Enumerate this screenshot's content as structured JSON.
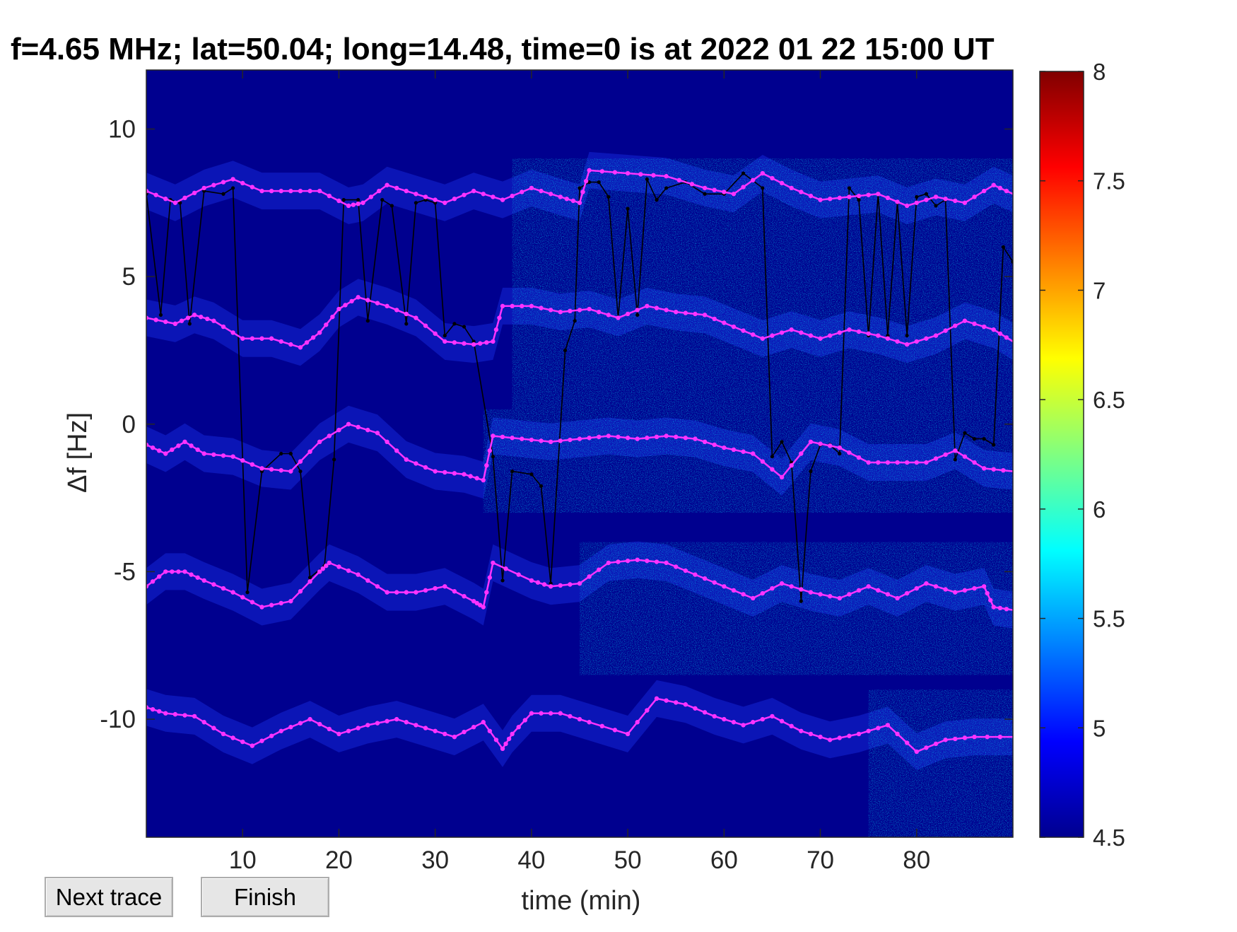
{
  "chart_data": {
    "type": "heatmap",
    "title": "f=4.65 MHz;  lat=50.04; long=14.48, time=0 is at 2022 01 22 15:00 UT",
    "xlabel": "time (min)",
    "ylabel": "Δf [Hz]",
    "xlim": [
      0,
      90
    ],
    "ylim": [
      -14,
      12
    ],
    "xticks": [
      10,
      20,
      30,
      40,
      50,
      60,
      70,
      80
    ],
    "yticks": [
      10,
      5,
      0,
      -5,
      -10
    ],
    "grid": false,
    "colorbar": {
      "range": [
        4.5,
        8
      ],
      "ticks": [
        8,
        7.5,
        7,
        6.5,
        6,
        5.5,
        5,
        4.5
      ],
      "colormap": "jet"
    },
    "colors": {
      "background": "#00008f",
      "trace_magenta": "#ff33ff",
      "trace_black": "#000000"
    },
    "bands": [
      {
        "center": 7.6,
        "spread": [
          0,
          90
        ],
        "extra": {
          "x0": 38,
          "x1": 90,
          "lo": 5.0,
          "hi": 9.0
        }
      },
      {
        "center": 3.3,
        "spread": [
          0,
          90
        ],
        "extra": {
          "x0": 38,
          "x1": 90,
          "lo": 0.5,
          "hi": 5.0
        }
      },
      {
        "center": -1.0,
        "spread": [
          0,
          90
        ],
        "extra": {
          "x0": 35,
          "x1": 90,
          "lo": -3.0,
          "hi": 0.5
        }
      },
      {
        "center": -5.6,
        "spread": [
          0,
          90
        ],
        "extra": {
          "x0": 45,
          "x1": 90,
          "lo": -8.5,
          "hi": -4.0
        }
      },
      {
        "center": -10.4,
        "spread": [
          0,
          90
        ],
        "extra": {
          "x0": 75,
          "x1": 90,
          "lo": -14.0,
          "hi": -9.0
        }
      }
    ],
    "magenta_traces": [
      {
        "x": [
          0,
          3,
          6,
          9,
          12,
          15,
          18,
          21,
          22.5,
          25,
          28,
          31,
          34,
          37,
          40,
          43,
          45,
          46,
          50,
          54,
          58,
          61,
          64,
          67,
          70,
          73,
          76,
          79,
          82,
          85,
          88,
          90
        ],
        "y": [
          7.9,
          7.5,
          8.0,
          8.3,
          7.9,
          7.9,
          7.9,
          7.4,
          7.5,
          8.1,
          7.8,
          7.5,
          7.9,
          7.6,
          8.0,
          7.7,
          7.5,
          8.6,
          8.5,
          8.4,
          8.0,
          7.8,
          8.5,
          8.0,
          7.6,
          7.7,
          7.8,
          7.4,
          7.7,
          7.5,
          8.1,
          7.8
        ]
      },
      {
        "x": [
          0,
          3,
          5,
          7,
          10,
          13,
          16,
          18,
          20,
          22,
          25,
          28,
          31,
          34,
          36,
          37,
          40,
          43,
          46,
          49,
          52,
          55,
          58,
          61,
          64,
          67,
          70,
          73,
          76,
          79,
          82,
          85,
          88,
          90
        ],
        "y": [
          3.6,
          3.4,
          3.7,
          3.5,
          2.9,
          2.9,
          2.6,
          3.1,
          3.9,
          4.3,
          4.0,
          3.6,
          2.8,
          2.7,
          2.8,
          4.0,
          4.0,
          3.8,
          3.9,
          3.6,
          4.0,
          3.8,
          3.7,
          3.3,
          2.9,
          3.2,
          2.9,
          3.2,
          3.0,
          2.7,
          3.0,
          3.5,
          3.2,
          2.8
        ]
      },
      {
        "x": [
          0,
          2,
          4,
          6,
          9,
          12,
          15,
          18,
          21,
          24,
          27,
          30,
          33,
          35,
          36,
          39,
          42,
          45,
          48,
          51,
          54,
          57,
          60,
          63,
          66,
          69,
          72,
          75,
          78,
          81,
          84,
          87,
          90
        ],
        "y": [
          -0.7,
          -1.0,
          -0.6,
          -1.0,
          -1.1,
          -1.5,
          -1.6,
          -0.6,
          0.0,
          -0.3,
          -1.2,
          -1.6,
          -1.7,
          -1.9,
          -0.4,
          -0.5,
          -0.6,
          -0.5,
          -0.4,
          -0.5,
          -0.4,
          -0.5,
          -0.8,
          -1.0,
          -1.8,
          -0.6,
          -0.8,
          -1.3,
          -1.3,
          -1.3,
          -0.9,
          -1.5,
          -1.6
        ]
      },
      {
        "x": [
          0,
          2,
          4,
          6,
          9,
          12,
          15,
          18,
          19,
          22,
          25,
          28,
          31,
          34,
          35,
          36,
          40,
          42,
          45,
          48,
          51,
          54,
          57,
          60,
          63,
          66,
          69,
          72,
          75,
          78,
          81,
          84,
          87,
          88,
          90
        ],
        "y": [
          -5.5,
          -5.0,
          -5.0,
          -5.3,
          -5.7,
          -6.2,
          -6.0,
          -5.0,
          -4.7,
          -5.1,
          -5.7,
          -5.7,
          -5.5,
          -6.0,
          -6.2,
          -4.7,
          -5.3,
          -5.5,
          -5.4,
          -4.7,
          -4.6,
          -4.7,
          -5.1,
          -5.5,
          -5.9,
          -5.4,
          -5.7,
          -5.9,
          -5.5,
          -5.9,
          -5.4,
          -5.7,
          -5.5,
          -6.2,
          -6.3
        ]
      },
      {
        "x": [
          0,
          2,
          5,
          8,
          11,
          14,
          17,
          20,
          23,
          26,
          29,
          32,
          35,
          37,
          38,
          40,
          43,
          46,
          50,
          53,
          56,
          59,
          62,
          65,
          68,
          71,
          74,
          77,
          80,
          83,
          86,
          90
        ],
        "y": [
          -9.6,
          -9.8,
          -9.9,
          -10.5,
          -10.9,
          -10.4,
          -10.0,
          -10.5,
          -10.2,
          -10.0,
          -10.3,
          -10.6,
          -10.1,
          -11.0,
          -10.5,
          -9.8,
          -9.8,
          -10.1,
          -10.5,
          -9.3,
          -9.5,
          -9.9,
          -10.2,
          -9.9,
          -10.4,
          -10.7,
          -10.5,
          -10.2,
          -11.1,
          -10.7,
          -10.6,
          -10.6
        ]
      }
    ],
    "black_traces": [
      {
        "x": [
          0,
          1.5,
          2.5,
          3.5,
          4.5,
          6,
          8,
          9,
          10.5,
          12,
          14,
          15,
          16,
          17,
          18.5,
          19.5,
          20.5,
          22,
          23,
          24.5,
          25.5,
          27,
          28,
          29,
          30,
          31,
          32,
          33,
          34,
          36,
          37,
          38,
          40,
          41,
          42,
          43.5,
          44.5,
          45,
          46,
          47,
          48,
          49,
          50,
          51,
          52,
          53,
          54,
          56,
          58,
          60,
          62,
          64,
          65,
          66,
          67,
          68,
          69,
          70,
          71,
          72,
          73,
          74,
          75,
          76,
          77,
          78,
          79,
          80,
          81,
          82,
          83,
          84,
          85,
          86,
          87,
          88,
          89,
          90
        ],
        "y": [
          7.8,
          3.7,
          7.6,
          7.5,
          3.4,
          7.9,
          7.8,
          8.0,
          -5.7,
          -1.6,
          -1.0,
          -1.0,
          -1.6,
          -5.2,
          -4.8,
          -1.2,
          7.6,
          7.6,
          3.5,
          7.6,
          7.4,
          3.4,
          7.5,
          7.6,
          7.5,
          3.0,
          3.4,
          3.3,
          2.8,
          -1.1,
          -5.3,
          -1.6,
          -1.7,
          -2.1,
          -5.4,
          2.5,
          3.5,
          8.0,
          8.2,
          8.2,
          7.7,
          3.6,
          7.3,
          3.7,
          8.3,
          7.6,
          8.0,
          8.2,
          7.8,
          7.8,
          8.5,
          8.0,
          -1.1,
          -0.6,
          -1.3,
          -6.0,
          -1.6,
          -0.7,
          -0.7,
          -1.0,
          8.0,
          7.6,
          3.0,
          7.8,
          3.0,
          7.5,
          3.0,
          7.7,
          7.8,
          7.4,
          7.6,
          -1.2,
          -0.3,
          -0.5,
          -0.5,
          -0.7,
          6.0,
          5.5
        ]
      }
    ]
  },
  "buttons": {
    "next_trace": "Next trace",
    "finish": "Finish"
  }
}
